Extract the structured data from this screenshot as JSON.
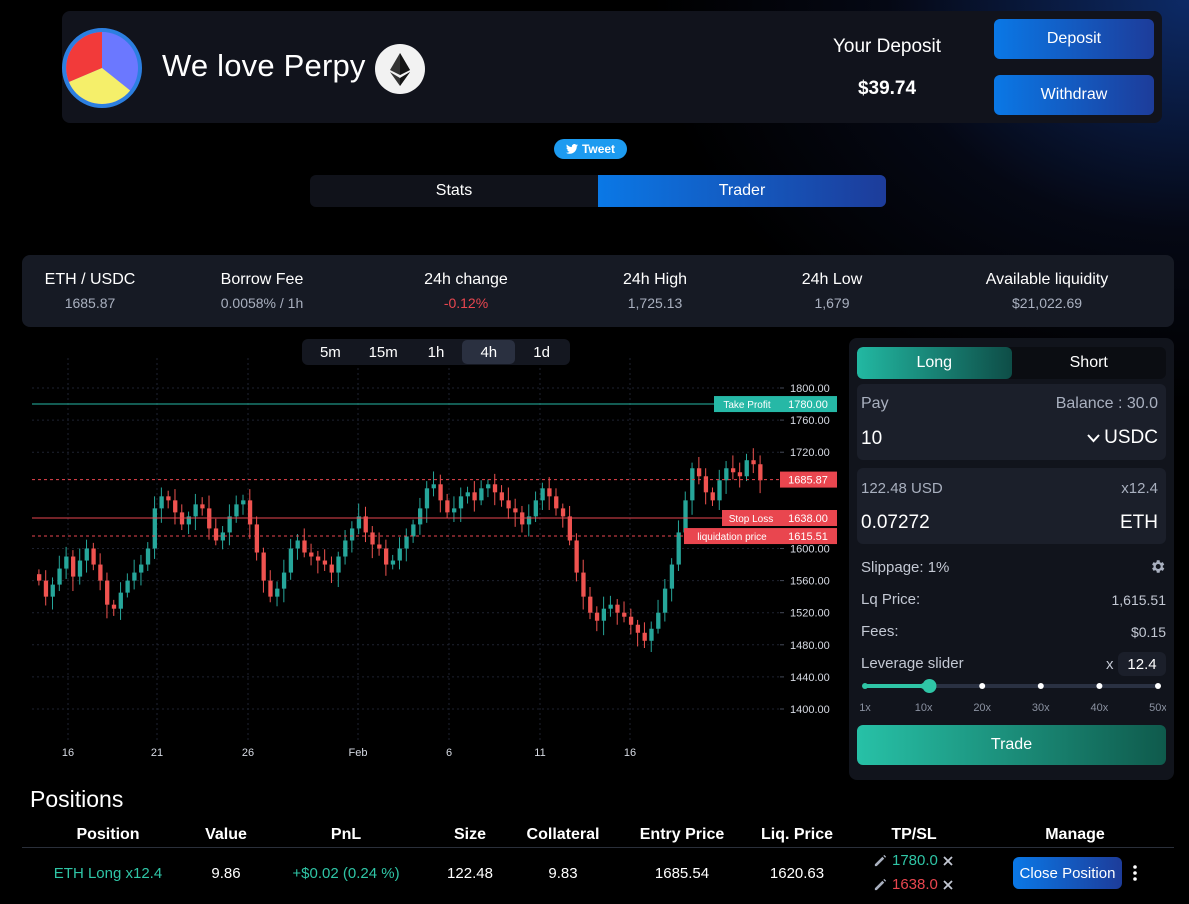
{
  "header": {
    "title": "We love Perpy",
    "deposit_label": "Your Deposit",
    "deposit_value": "$39.74",
    "deposit_button": "Deposit",
    "withdraw_button": "Withdraw"
  },
  "tweet_label": "Tweet",
  "tabs": [
    {
      "label": "Stats",
      "active": false
    },
    {
      "label": "Trader",
      "active": true
    }
  ],
  "stats": [
    {
      "label": "ETH / USDC",
      "value": "1685.87"
    },
    {
      "label": "Borrow Fee",
      "value": "0.0058% / 1h"
    },
    {
      "label": "24h change",
      "value": "-0.12%"
    },
    {
      "label": "24h High",
      "value": "1,725.13"
    },
    {
      "label": "24h Low",
      "value": "1,679"
    },
    {
      "label": "Available liquidity",
      "value": "$21,022.69"
    }
  ],
  "timeframes": [
    {
      "label": "5m"
    },
    {
      "label": "15m"
    },
    {
      "label": "1h"
    },
    {
      "label": "4h",
      "active": true
    },
    {
      "label": "1d"
    }
  ],
  "chart_data": {
    "type": "candlestick",
    "y_ticks": [
      "1800.00",
      "1760.00",
      "1720.00",
      "1600.00",
      "1560.00",
      "1520.00",
      "1480.00",
      "1440.00",
      "1400.00"
    ],
    "x_ticks": [
      "16",
      "21",
      "26",
      "Feb",
      "6",
      "11",
      "16"
    ],
    "ylim": [
      1380,
      1830
    ],
    "price_lines": [
      {
        "name": "Take Profit",
        "value": 1780.0,
        "label": "1780.00",
        "color": "#26b8a6",
        "style": "solid"
      },
      {
        "name": "",
        "value": 1685.87,
        "label": "1685.87",
        "color": "#e9464f",
        "style": "dashed"
      },
      {
        "name": "Stop Loss",
        "value": 1638.0,
        "label": "1638.00",
        "color": "#e9464f",
        "style": "solid"
      },
      {
        "name": "liquidation price",
        "value": 1615.51,
        "label": "1615.51",
        "color": "#e9464f",
        "style": "dashed"
      }
    ],
    "up_color": "#26a69a",
    "down_color": "#ef5350",
    "closes": [
      1560,
      1540,
      1555,
      1575,
      1590,
      1565,
      1585,
      1600,
      1580,
      1560,
      1530,
      1525,
      1545,
      1560,
      1570,
      1580,
      1600,
      1650,
      1665,
      1660,
      1645,
      1630,
      1640,
      1655,
      1650,
      1625,
      1610,
      1620,
      1640,
      1655,
      1660,
      1630,
      1595,
      1560,
      1540,
      1550,
      1570,
      1600,
      1610,
      1595,
      1590,
      1585,
      1580,
      1570,
      1590,
      1610,
      1625,
      1640,
      1620,
      1605,
      1600,
      1580,
      1585,
      1600,
      1615,
      1630,
      1650,
      1675,
      1680,
      1660,
      1645,
      1650,
      1665,
      1670,
      1660,
      1675,
      1680,
      1670,
      1660,
      1650,
      1645,
      1630,
      1640,
      1660,
      1675,
      1665,
      1650,
      1640,
      1610,
      1570,
      1540,
      1520,
      1510,
      1525,
      1530,
      1520,
      1515,
      1505,
      1495,
      1485,
      1500,
      1520,
      1550,
      1580,
      1620,
      1660,
      1700,
      1690,
      1670,
      1660,
      1685,
      1700,
      1695,
      1690,
      1710,
      1705,
      1685
    ]
  },
  "trade": {
    "long_label": "Long",
    "short_label": "Short",
    "pay_label": "Pay",
    "balance_label": "Balance : 30.0",
    "pay_amount": "10",
    "pay_token": "USDC",
    "out_usd": "122.48 USD",
    "out_leverage": "x12.4",
    "out_amount": "0.07272",
    "out_token": "ETH",
    "slippage_label": "Slippage: 1%",
    "lq_label": "Lq Price:",
    "lq_value": "1,615.51",
    "fees_label": "Fees:",
    "fees_value": "$0.15",
    "leverage_label": "Leverage slider",
    "leverage_x": "x",
    "leverage_value": "12.4",
    "leverage_fraction": 0.22,
    "slider_marks": [
      "1x",
      "10x",
      "20x",
      "30x",
      "40x",
      "50x"
    ],
    "trade_button": "Trade"
  },
  "positions": {
    "title": "Positions",
    "headers": [
      "Position",
      "Value",
      "PnL",
      "Size",
      "Collateral",
      "Entry Price",
      "Liq. Price",
      "TP/SL",
      "Manage"
    ],
    "rows": [
      {
        "position": "ETH Long x12.4",
        "value": "9.86",
        "pnl": "+$0.02 (0.24 %)",
        "size": "122.48",
        "collateral": "9.83",
        "entry_price": "1685.54",
        "liq_price": "1620.63",
        "tp": "1780.0",
        "sl": "1638.0",
        "manage_button": "Close Position"
      }
    ]
  }
}
